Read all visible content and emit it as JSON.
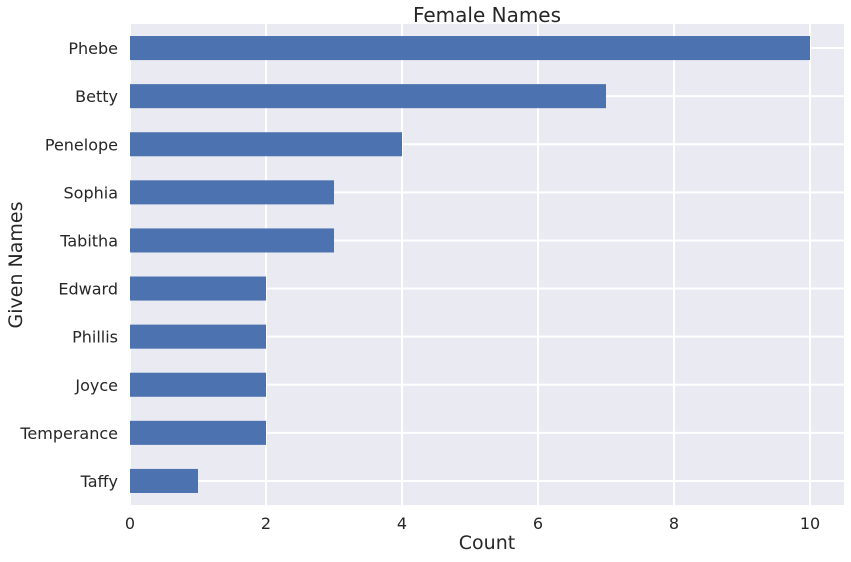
{
  "chart_data": {
    "type": "bar",
    "orientation": "horizontal",
    "title": "Female Names",
    "xlabel": "Count",
    "ylabel": "Given Names",
    "categories": [
      "Phebe",
      "Betty",
      "Penelope",
      "Sophia",
      "Tabitha",
      "Edward",
      "Phillis",
      "Joyce",
      "Temperance",
      "Taffy"
    ],
    "values": [
      10,
      7,
      4,
      3,
      3,
      2,
      2,
      2,
      2,
      1
    ],
    "xlim": [
      0,
      10.5
    ],
    "xticks": [
      0,
      2,
      4,
      6,
      8,
      10
    ],
    "grid": true,
    "colors": {
      "bar": "#4c72b0",
      "plot_background": "#eaeaf2",
      "grid": "#ffffff",
      "text": "#262626"
    }
  }
}
